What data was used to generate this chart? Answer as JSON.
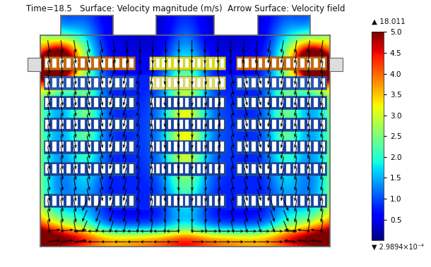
{
  "title": "Time=18.5   Surface: Velocity magnitude (m/s)  Arrow Surface: Velocity field",
  "title_fontsize": 8.5,
  "title_color": "#111111",
  "bg_color": "#ffffff",
  "colorbar_min": 0,
  "colorbar_max": 5,
  "colorbar_ticks": [
    0.5,
    1,
    1.5,
    2,
    2.5,
    3,
    3.5,
    4,
    4.5,
    5
  ],
  "colorbar_top_label": "▲ 18.011",
  "colorbar_bottom_label": "▼ 2.9894×10⁻⁴",
  "colormap": "jet"
}
